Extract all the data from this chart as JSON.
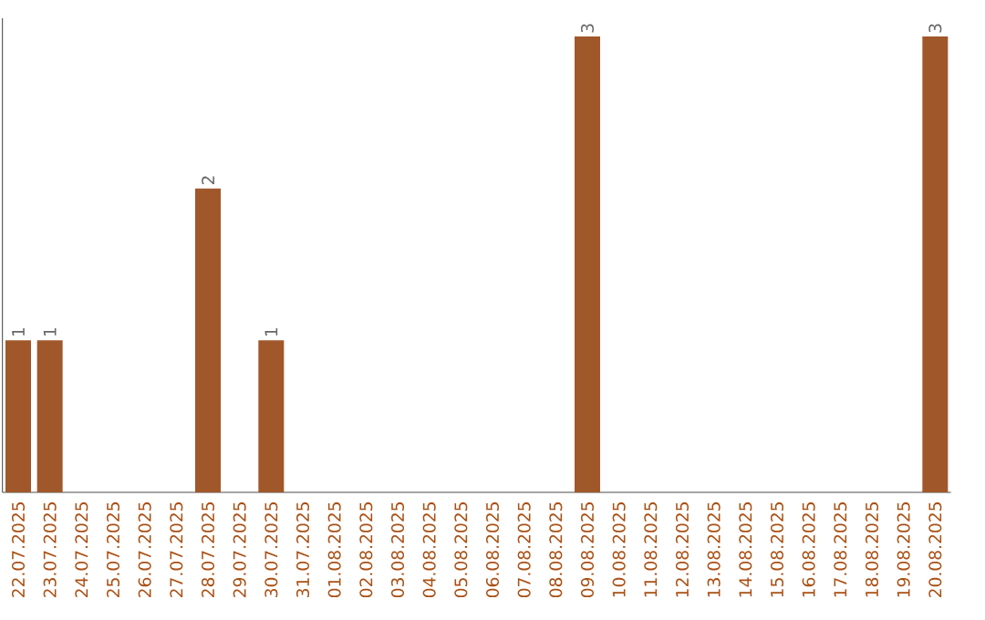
{
  "chart_data": {
    "type": "bar",
    "categories": [
      "22.07.2025",
      "23.07.2025",
      "24.07.2025",
      "25.07.2025",
      "26.07.2025",
      "27.07.2025",
      "28.07.2025",
      "29.07.2025",
      "30.07.2025",
      "31.07.2025",
      "01.08.2025",
      "02.08.2025",
      "03.08.2025",
      "04.08.2025",
      "05.08.2025",
      "06.08.2025",
      "07.08.2025",
      "08.08.2025",
      "09.08.2025",
      "10.08.2025",
      "11.08.2025",
      "12.08.2025",
      "13.08.2025",
      "14.08.2025",
      "15.08.2025",
      "16.08.2025",
      "17.08.2025",
      "18.08.2025",
      "19.08.2025",
      "20.08.2025"
    ],
    "values": [
      1,
      1,
      0,
      0,
      0,
      0,
      2,
      0,
      1,
      0,
      0,
      0,
      0,
      0,
      0,
      0,
      0,
      0,
      3,
      0,
      0,
      0,
      0,
      0,
      0,
      0,
      0,
      0,
      0,
      3
    ],
    "value_labels": [
      "1",
      "1",
      null,
      null,
      null,
      null,
      "2",
      null,
      "1",
      null,
      null,
      null,
      null,
      null,
      null,
      null,
      null,
      null,
      "3",
      null,
      null,
      null,
      null,
      null,
      null,
      null,
      null,
      null,
      null,
      "3"
    ],
    "color": "#a0572a"
  }
}
